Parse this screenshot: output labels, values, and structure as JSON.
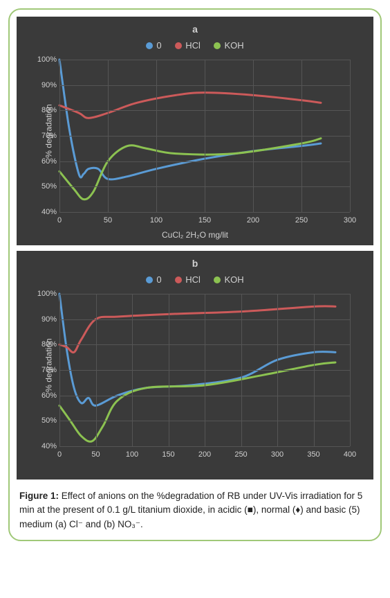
{
  "figure": {
    "caption_label": "Figure 1:",
    "caption_text": " Effect of anions on the %degradation of RB under UV-Vis irradiation for 5 min at the present of 0.1 g/L titanium dioxide, in acidic (■), normal (♦) and  basic (5)  medium (a) Cl⁻ and (b) NO₃⁻."
  },
  "panel_a": {
    "type": "line",
    "title": "a",
    "background_color": "#3a3a3a",
    "grid_color": "#555555",
    "ylabel": "% degradation",
    "xlabel": "CuCl₂ 2H₂O  mg/lit",
    "xlim": [
      0,
      300
    ],
    "ylim": [
      40,
      100
    ],
    "xticks": [
      0,
      50,
      100,
      150,
      200,
      250,
      300
    ],
    "yticks": [
      40,
      50,
      60,
      70,
      80,
      90,
      100
    ],
    "ytick_labels": [
      "40%",
      "50%",
      "60%",
      "70%",
      "80%",
      "90%",
      "100%"
    ],
    "line_width": 3,
    "legend": [
      {
        "label": "0",
        "color": "#5a9bd5"
      },
      {
        "label": "HCl",
        "color": "#cc5a5a"
      },
      {
        "label": "KOH",
        "color": "#8cc251"
      }
    ],
    "series": {
      "zero": {
        "color": "#5a9bd5",
        "x": [
          0,
          10,
          20,
          25,
          30,
          40,
          50,
          70,
          100,
          150,
          200,
          250,
          270
        ],
        "y": [
          100,
          73,
          55,
          55,
          57,
          57,
          53,
          54,
          57,
          61,
          64,
          66,
          67
        ]
      },
      "hcl": {
        "color": "#cc5a5a",
        "x": [
          0,
          20,
          30,
          50,
          80,
          120,
          150,
          200,
          250,
          270
        ],
        "y": [
          82,
          79,
          77,
          79,
          83,
          86,
          87,
          86,
          84,
          83
        ]
      },
      "koh": {
        "color": "#8cc251",
        "x": [
          0,
          15,
          25,
          35,
          50,
          70,
          90,
          120,
          180,
          250,
          270
        ],
        "y": [
          56,
          49,
          45,
          48,
          60,
          66,
          65,
          63,
          63,
          67,
          69
        ]
      }
    }
  },
  "panel_b": {
    "type": "line",
    "title": "b",
    "background_color": "#3a3a3a",
    "grid_color": "#555555",
    "ylabel": "% degradation",
    "xlabel": "",
    "xlim": [
      0,
      400
    ],
    "ylim": [
      40,
      100
    ],
    "xticks": [
      0,
      50,
      100,
      150,
      200,
      250,
      300,
      350,
      400
    ],
    "yticks": [
      40,
      50,
      60,
      70,
      80,
      90,
      100
    ],
    "ytick_labels": [
      "40%",
      "50%",
      "60%",
      "70%",
      "80%",
      "90%",
      "100%"
    ],
    "line_width": 3,
    "legend": [
      {
        "label": "0",
        "color": "#5a9bd5"
      },
      {
        "label": "HCl",
        "color": "#cc5a5a"
      },
      {
        "label": "KOH",
        "color": "#8cc251"
      }
    ],
    "series": {
      "zero": {
        "color": "#5a9bd5",
        "x": [
          0,
          10,
          20,
          30,
          40,
          50,
          80,
          120,
          180,
          250,
          300,
          350,
          380
        ],
        "y": [
          100,
          78,
          63,
          57,
          59,
          56,
          60,
          63,
          64,
          67,
          74,
          77,
          77
        ]
      },
      "hcl": {
        "color": "#cc5a5a",
        "x": [
          0,
          10,
          20,
          30,
          50,
          80,
          150,
          250,
          350,
          380
        ],
        "y": [
          80,
          79,
          77,
          82,
          90,
          91,
          92,
          93,
          95,
          95
        ]
      },
      "koh": {
        "color": "#8cc251",
        "x": [
          0,
          15,
          30,
          45,
          60,
          80,
          120,
          200,
          280,
          350,
          380
        ],
        "y": [
          56,
          50,
          44,
          42,
          48,
          58,
          63,
          64,
          68,
          72,
          73
        ]
      }
    }
  }
}
